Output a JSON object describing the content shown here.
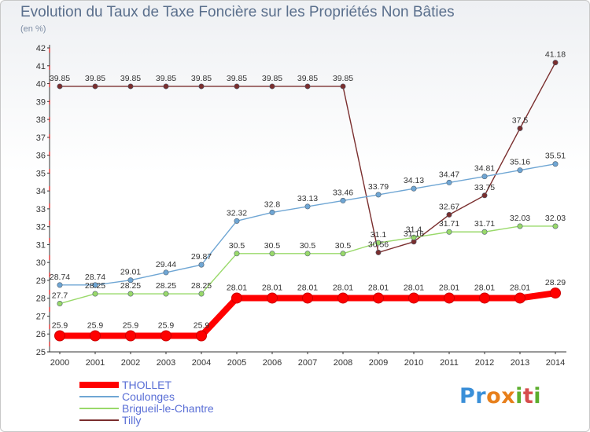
{
  "title": "Evolution du Taux de Taxe Foncière sur les Propriétés Non Bâties",
  "unit": "(en %)",
  "logo": {
    "letters": [
      "P",
      "r",
      "o",
      "x",
      "i",
      "t",
      "i"
    ],
    "colors": [
      "#3a8fd8",
      "#3a8fd8",
      "#e77f1b",
      "#e77f1b",
      "#5cae2e",
      "#d64d4d",
      "#5cae2e"
    ]
  },
  "chart_data": {
    "type": "line",
    "title": "Evolution du Taux de Taxe Foncière sur les Propriétés Non Bâties",
    "ylabel": "(en %)",
    "x": [
      "2000",
      "2001",
      "2002",
      "2003",
      "2004",
      "2005",
      "2006",
      "2007",
      "2008",
      "2009",
      "2010",
      "2011",
      "2012",
      "2013",
      "2014"
    ],
    "ylim": [
      25,
      42
    ],
    "yticks": [
      "25",
      "26",
      "27",
      "28",
      "29",
      "30",
      "31",
      "32",
      "33",
      "34",
      "35",
      "36",
      "37",
      "38",
      "39",
      "40",
      "41",
      "42"
    ],
    "grid": false,
    "legend_position": "bottom-left",
    "series": [
      {
        "name": "THOLLET",
        "color": "#ff0000",
        "values": [
          25.9,
          25.9,
          25.9,
          25.9,
          25.9,
          28.01,
          28.01,
          28.01,
          28.01,
          28.01,
          28.01,
          28.01,
          28.01,
          28.01,
          28.29
        ],
        "labels": [
          "25.9",
          "25.9",
          "25.9",
          "25.9",
          "25.9",
          "28.01",
          "28.01",
          "28.01",
          "28.01",
          "28.01",
          "28.01",
          "28.01",
          "28.01",
          "28.01",
          "28.29"
        ]
      },
      {
        "name": "Coulonges",
        "color": "#6fa6d4",
        "values": [
          28.74,
          28.74,
          29.01,
          29.44,
          29.87,
          32.32,
          32.8,
          33.13,
          33.46,
          33.79,
          34.13,
          34.47,
          34.81,
          35.16,
          35.51
        ],
        "labels": [
          "28.74",
          "28.74",
          "29.01",
          "29.44",
          "29.87",
          "32.32",
          "32.8",
          "33.13",
          "33.46",
          "33.79",
          "34.13",
          "34.47",
          "34.81",
          "35.16",
          "35.51"
        ]
      },
      {
        "name": "Brigueil-le-Chantre",
        "color": "#99d96a",
        "values": [
          27.7,
          28.25,
          28.25,
          28.25,
          28.25,
          30.5,
          30.5,
          30.5,
          30.5,
          31.1,
          31.4,
          31.71,
          31.71,
          32.03,
          32.03
        ],
        "labels": [
          "27.7",
          "28.25",
          "28.25",
          "28.25",
          "28.25",
          "30.5",
          "30.5",
          "30.5",
          "30.5",
          "31.1",
          "31.4",
          "31.71",
          "31.71",
          "32.03",
          "32.03"
        ]
      },
      {
        "name": "Tilly",
        "color": "#7a2e2e",
        "values": [
          39.85,
          39.85,
          39.85,
          39.85,
          39.85,
          39.85,
          39.85,
          39.85,
          39.85,
          30.56,
          31.16,
          32.67,
          33.75,
          37.5,
          41.18
        ],
        "labels": [
          "39.85",
          "39.85",
          "39.85",
          "39.85",
          "39.85",
          "39.85",
          "39.85",
          "39.85",
          "39.85",
          "30.56",
          "31.16",
          "32.67",
          "33.75",
          "37.5",
          "41.18"
        ]
      }
    ]
  }
}
